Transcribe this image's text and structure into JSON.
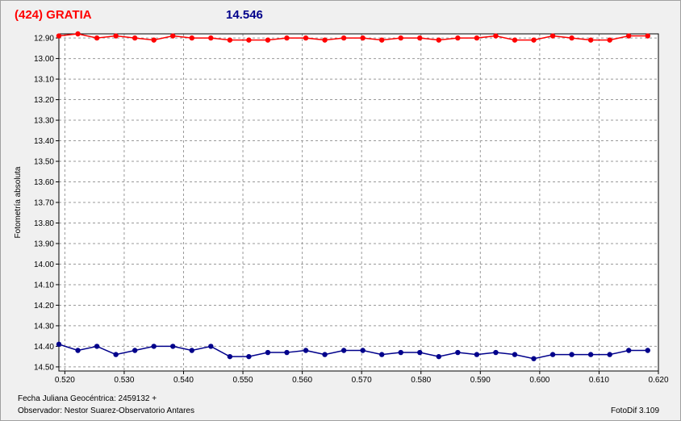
{
  "header": {
    "object_title": "(424) GRATIA",
    "magnitude": "14.546",
    "object_color": "#ff0000",
    "magnitude_color": "#00008b"
  },
  "footer": {
    "julian_date": "Fecha Juliana Geocéntrica: 2459132 +",
    "observer": "Observador: Nestor Suarez-Observatorio Antares",
    "software": "FotoDif 3.109"
  },
  "chart_data": {
    "type": "line",
    "ylabel": "Fotometría absoluta",
    "xlabel": "",
    "xlim": [
      0.519,
      0.62
    ],
    "ylim": [
      12.88,
      14.52
    ],
    "y_inverted": true,
    "grid": true,
    "x_ticks": [
      "0.520",
      "0.530",
      "0.540",
      "0.550",
      "0.560",
      "0.570",
      "0.580",
      "0.590",
      "0.600",
      "0.610",
      "0.620"
    ],
    "y_ticks": [
      "12.90",
      "13.00",
      "13.10",
      "13.20",
      "13.30",
      "13.40",
      "13.50",
      "13.60",
      "13.70",
      "13.80",
      "13.90",
      "14.00",
      "14.10",
      "14.20",
      "14.30",
      "14.40",
      "14.50"
    ],
    "x": [
      0.519,
      0.5222,
      0.5254,
      0.5286,
      0.5318,
      0.535,
      0.5382,
      0.5414,
      0.5446,
      0.5478,
      0.551,
      0.5542,
      0.5574,
      0.5606,
      0.5638,
      0.567,
      0.5702,
      0.5734,
      0.5766,
      0.5798,
      0.583,
      0.5862,
      0.5894,
      0.5926,
      0.5958,
      0.599,
      0.6022,
      0.6054,
      0.6086,
      0.6118,
      0.615,
      0.6182
    ],
    "series": [
      {
        "color": "#ff0000",
        "values": [
          12.89,
          12.88,
          12.9,
          12.89,
          12.9,
          12.91,
          12.89,
          12.9,
          12.9,
          12.91,
          12.91,
          12.91,
          12.9,
          12.9,
          12.91,
          12.9,
          12.9,
          12.91,
          12.9,
          12.9,
          12.91,
          12.9,
          12.9,
          12.89,
          12.91,
          12.91,
          12.89,
          12.9,
          12.91,
          12.91,
          12.89,
          12.89
        ]
      },
      {
        "color": "#00008b",
        "values": [
          14.39,
          14.42,
          14.4,
          14.44,
          14.42,
          14.4,
          14.4,
          14.42,
          14.4,
          14.45,
          14.45,
          14.43,
          14.43,
          14.42,
          14.44,
          14.42,
          14.42,
          14.44,
          14.43,
          14.43,
          14.45,
          14.43,
          14.44,
          14.43,
          14.44,
          14.46,
          14.44,
          14.44,
          14.44,
          14.44,
          14.42,
          14.42
        ]
      }
    ]
  }
}
